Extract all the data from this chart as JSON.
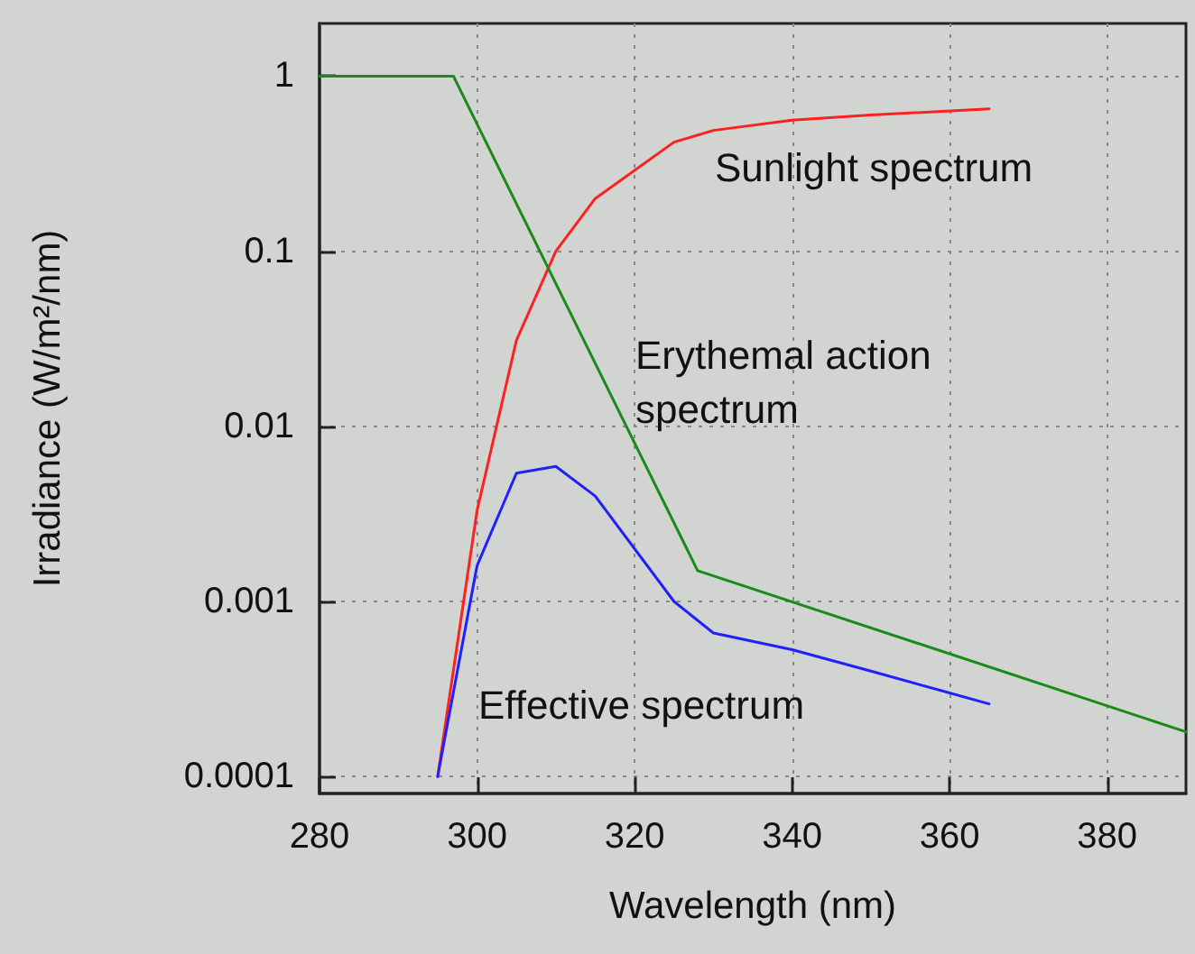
{
  "chart_data": {
    "type": "line",
    "xlabel": "Wavelength (nm)",
    "ylabel": "Irradiance (W/m²/nm)",
    "log": "y",
    "grid": true,
    "legend": false,
    "marker": "none",
    "line_style": "solid",
    "xlim": [
      280,
      390
    ],
    "xticks": [
      280,
      300,
      320,
      340,
      360,
      380
    ],
    "ylim": [
      8e-05,
      2
    ],
    "yticks": [
      0.0001,
      0.001,
      0.01,
      0.1,
      1
    ],
    "series": [
      {
        "name": "Sunlight spectrum",
        "color": "#ff2020",
        "x": [
          295,
          300,
          305,
          310,
          315,
          325,
          330,
          340,
          350,
          365
        ],
        "values": [
          0.0001,
          0.0033,
          0.031,
          0.1,
          0.2,
          0.42,
          0.49,
          0.56,
          0.6,
          0.65
        ]
      },
      {
        "name": "Erythemal action\nspectrum",
        "color": "#1a8a1a",
        "x": [
          280,
          297,
          328,
          390
        ],
        "values": [
          1,
          1,
          0.0015,
          0.00018
        ]
      },
      {
        "name": "Effective spectrum",
        "color": "#2020ff",
        "x": [
          295,
          300,
          305,
          310,
          315,
          325,
          330,
          340,
          350,
          365
        ],
        "values": [
          0.0001,
          0.0016,
          0.0054,
          0.0059,
          0.004,
          0.001,
          0.00066,
          0.00053,
          0.0004,
          0.00026
        ]
      }
    ]
  }
}
